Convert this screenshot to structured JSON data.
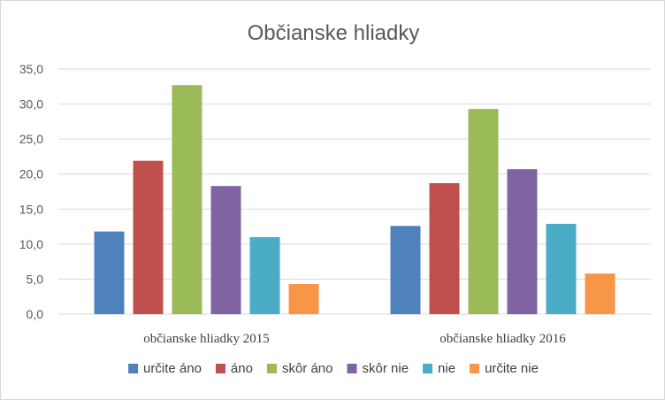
{
  "chart_data": {
    "type": "bar",
    "title": "Občianske hliadky",
    "xlabel": "",
    "ylabel": "",
    "categories": [
      "občianske hliadky 2015",
      "občianske hliadky 2016"
    ],
    "series": [
      {
        "name": "určite áno",
        "color": "#4f81bd",
        "values": [
          11.8,
          12.6
        ]
      },
      {
        "name": "áno",
        "color": "#c0504d",
        "values": [
          21.9,
          18.7
        ]
      },
      {
        "name": "skôr áno",
        "color": "#9bbb59",
        "values": [
          32.7,
          29.3
        ]
      },
      {
        "name": "skôr nie",
        "color": "#8064a2",
        "values": [
          18.3,
          20.7
        ]
      },
      {
        "name": "nie",
        "color": "#4bacc6",
        "values": [
          11.0,
          12.9
        ]
      },
      {
        "name": "určite nie",
        "color": "#f79646",
        "values": [
          4.3,
          5.8
        ]
      }
    ],
    "ylim": [
      0,
      35
    ],
    "yticks": [
      "0,0",
      "5,0",
      "10,0",
      "15,0",
      "20,0",
      "25,0",
      "30,0",
      "35,0"
    ],
    "grid": true,
    "legend_position": "bottom"
  }
}
